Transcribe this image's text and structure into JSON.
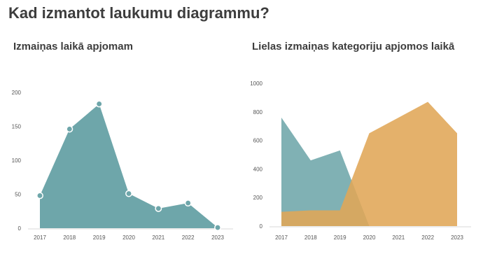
{
  "title": "Kad izmantot laukumu diagrammu?",
  "colors": {
    "teal": "#6ea6aa",
    "orange": "#e0a656",
    "axis": "#d9d9d9",
    "marker_stroke": "#ffffff"
  },
  "chart_data": [
    {
      "type": "area",
      "title": "Izmaiņas laikā apjomam",
      "x": [
        "2017",
        "2018",
        "2019",
        "2020",
        "2021",
        "2022",
        "2023"
      ],
      "series": [
        {
          "values": [
            48,
            146,
            183,
            51,
            29,
            37,
            1
          ],
          "color": "#6ea6aa"
        }
      ],
      "markers": true,
      "yticks": [
        "0",
        "50",
        "100",
        "150",
        "200"
      ],
      "ylim": [
        0,
        200
      ],
      "grid": false,
      "legend": "none"
    },
    {
      "type": "area",
      "title": "Lielas izmaiņas kategoriju apjomos laikā",
      "x": [
        "2017",
        "2018",
        "2019",
        "2020",
        "2021",
        "2022",
        "2023"
      ],
      "series": [
        {
          "values": [
            760,
            460,
            530,
            0,
            null,
            null,
            null
          ],
          "color": "#6ea6aa"
        },
        {
          "values": [
            100,
            110,
            110,
            650,
            760,
            870,
            650
          ],
          "color": "#e0a656"
        }
      ],
      "markers": false,
      "yticks": [
        "0",
        "200",
        "400",
        "600",
        "800",
        "1000"
      ],
      "ylim": [
        0,
        1000
      ],
      "grid": false,
      "legend": "none"
    }
  ]
}
